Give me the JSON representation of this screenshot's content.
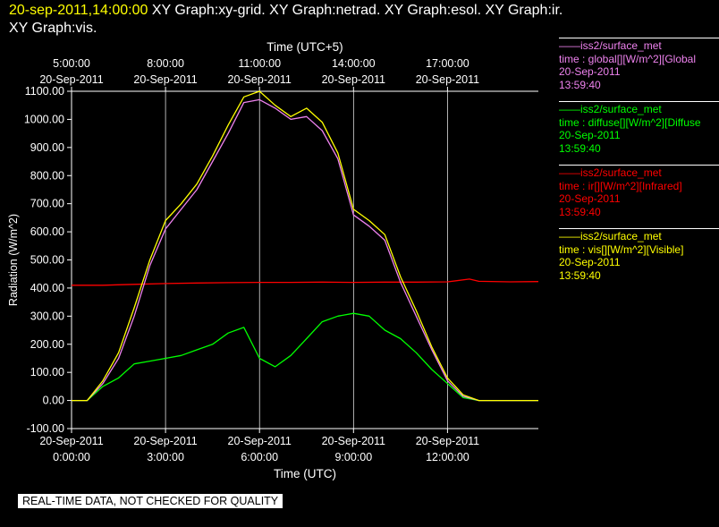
{
  "header": {
    "timestamp": "20-sep-2011,14:00:00",
    "graphs": "XY Graph:xy-grid.  XY Graph:netrad.  XY Graph:esol.  XY Graph:ir.",
    "graphs_line2": "XY Graph:vis."
  },
  "legend": [
    {
      "source": "——iss2/surface_met",
      "variable": "time : global[][W/m^2][Global",
      "date": "20-Sep-2011",
      "time": "13:59:40",
      "color": "#ee82ee"
    },
    {
      "source": "——iss2/surface_met",
      "variable": "time : diffuse[][W/m^2][Diffuse",
      "date": "20-Sep-2011",
      "time": "13:59:40",
      "color": "#00ff00"
    },
    {
      "source": "——iss2/surface_met",
      "variable": "time : ir[][W/m^2][Infrared]",
      "date": "20-Sep-2011",
      "time": "13:59:40",
      "color": "#ff0000"
    },
    {
      "source": "——iss2/surface_met",
      "variable": "time : vis[][W/m^2][Visible]",
      "date": "20-Sep-2011",
      "time": "13:59:40",
      "color": "#ffff00"
    }
  ],
  "quality_banner": "REAL-TIME DATA, NOT CHECKED FOR QUALITY",
  "chart_data": {
    "type": "line",
    "xlabel": "Time (UTC)",
    "top_xlabel": "Time (UTC+5)",
    "ylabel": "Radiation (W/m^2)",
    "ylim": [
      -100,
      1100
    ],
    "xlim": [
      0,
      14.9
    ],
    "grid": true,
    "yticks": [
      "1100.00",
      "1000.00",
      "900.00",
      "800.00",
      "700.00",
      "600.00",
      "500.00",
      "400.00",
      "300.00",
      "200.00",
      "100.00",
      "0.00",
      "-100.00"
    ],
    "xticks_bottom": [
      {
        "x": 0,
        "date": "20-Sep-2011",
        "time": "0:00:00"
      },
      {
        "x": 3,
        "date": "20-Sep-2011",
        "time": "3:00:00"
      },
      {
        "x": 6,
        "date": "20-Sep-2011",
        "time": "6:00:00"
      },
      {
        "x": 9,
        "date": "20-Sep-2011",
        "time": "9:00:00"
      },
      {
        "x": 12,
        "date": "20-Sep-2011",
        "time": "12:00:00"
      }
    ],
    "xticks_top": [
      {
        "x": 0,
        "time": "5:00:00",
        "date": "20-Sep-2011"
      },
      {
        "x": 3,
        "time": "8:00:00",
        "date": "20-Sep-2011"
      },
      {
        "x": 6,
        "time": "11:00:00",
        "date": "20-Sep-2011"
      },
      {
        "x": 9,
        "time": "14:00:00",
        "date": "20-Sep-2011"
      },
      {
        "x": 12,
        "time": "17:00:00",
        "date": "20-Sep-2011"
      }
    ],
    "series": [
      {
        "name": "iss2/surface_met time : ir[][W/m^2][Infrared]",
        "color": "#ff0000",
        "x": [
          0,
          1,
          2,
          3,
          4,
          5,
          6,
          7,
          8,
          9,
          10,
          11,
          12,
          12.7,
          13,
          14,
          14.9
        ],
        "y": [
          410,
          410,
          413,
          416,
          418,
          419,
          420,
          420,
          421,
          420,
          421,
          421,
          422,
          432,
          424,
          422,
          423
        ]
      },
      {
        "name": "iss2/surface_met time : diffuse[][W/m^2][Diffuse",
        "color": "#00ff00",
        "x": [
          0,
          0.5,
          1,
          1.5,
          2,
          2.5,
          3,
          3.5,
          4,
          4.5,
          5,
          5.5,
          6,
          6.5,
          7,
          7.5,
          8,
          8.5,
          9,
          9.5,
          10,
          10.5,
          11,
          11.5,
          12,
          12.5,
          13,
          13.5,
          14,
          14.9
        ],
        "y": [
          0,
          0,
          50,
          80,
          130,
          140,
          150,
          160,
          180,
          200,
          240,
          260,
          150,
          120,
          160,
          220,
          280,
          300,
          310,
          300,
          250,
          220,
          170,
          110,
          60,
          10,
          0,
          0,
          0,
          0
        ]
      },
      {
        "name": "iss2/surface_met time : global[][W/m^2][Global",
        "color": "#ee82ee",
        "x": [
          0,
          0.5,
          1,
          1.5,
          2,
          2.5,
          3,
          3.5,
          4,
          4.5,
          5,
          5.5,
          6,
          6.5,
          7,
          7.5,
          8,
          8.5,
          9,
          9.5,
          10,
          10.5,
          11,
          11.5,
          12,
          12.5,
          13,
          13.5,
          14,
          14.9
        ],
        "y": [
          0,
          0,
          60,
          150,
          300,
          480,
          610,
          680,
          750,
          850,
          950,
          1060,
          1070,
          1040,
          1000,
          1010,
          960,
          860,
          660,
          620,
          570,
          420,
          300,
          180,
          70,
          15,
          0,
          0,
          0,
          0
        ]
      },
      {
        "name": "iss2/surface_met time : vis[][W/m^2][Visible]",
        "color": "#ffff00",
        "x": [
          0,
          0.5,
          1,
          1.5,
          2,
          2.5,
          3,
          3.5,
          4,
          4.5,
          5,
          5.5,
          6,
          6.5,
          7,
          7.5,
          8,
          8.5,
          9,
          9.5,
          10,
          10.5,
          11,
          11.5,
          12,
          12.5,
          13,
          13.5,
          14,
          14.9
        ],
        "y": [
          0,
          0,
          70,
          170,
          330,
          500,
          640,
          700,
          770,
          870,
          980,
          1080,
          1100,
          1050,
          1010,
          1040,
          990,
          880,
          680,
          640,
          590,
          440,
          320,
          190,
          80,
          20,
          0,
          0,
          0,
          0
        ]
      }
    ]
  }
}
